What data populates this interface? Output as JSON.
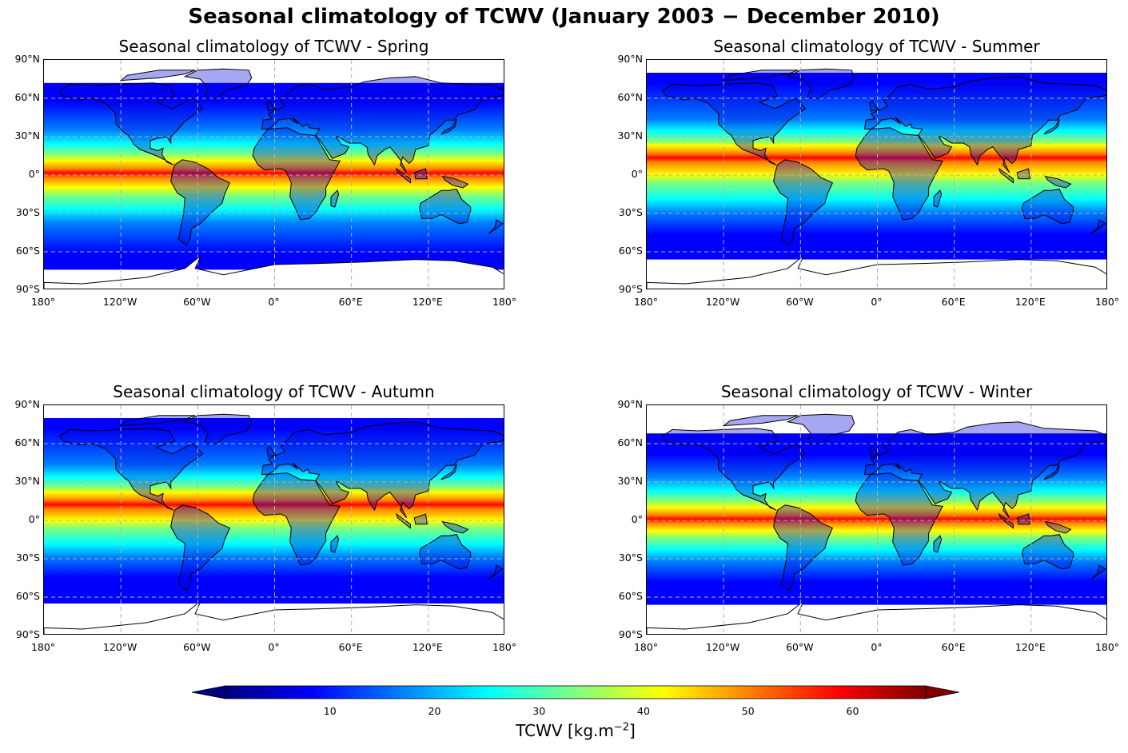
{
  "title": "Seasonal climatology of TCWV (January 2003  −  December 2010)",
  "panels": [
    {
      "season": "Spring",
      "title": "Seasonal climatology of TCWV - Spring",
      "ice_north_lat": 72,
      "ice_south_lat": -74,
      "itcz_lat": 3
    },
    {
      "season": "Summer",
      "title": "Seasonal climatology of TCWV - Summer",
      "ice_north_lat": 80,
      "ice_south_lat": -66,
      "itcz_lat": 8
    },
    {
      "season": "Autumn",
      "title": "Seasonal climatology of TCWV - Autumn",
      "ice_north_lat": 80,
      "ice_south_lat": -65,
      "itcz_lat": 6
    },
    {
      "season": "Winter",
      "title": "Seasonal climatology of TCWV - Winter",
      "ice_north_lat": 68,
      "ice_south_lat": -66,
      "itcz_lat": 0
    }
  ],
  "axes": {
    "lat_ticks": [
      "90°N",
      "60°N",
      "30°N",
      "0°",
      "30°S",
      "60°S",
      "90°S"
    ],
    "lon_ticks": [
      "180°",
      "120°W",
      "60°W",
      "0°",
      "60°E",
      "120°E",
      "180°"
    ],
    "lat_range": [
      -90,
      90
    ],
    "lon_range": [
      -180,
      180
    ],
    "gridlines": true
  },
  "colorbar": {
    "label": "TCWV [kg.m",
    "label_exp": "−2",
    "label_close": "]",
    "ticks": [
      "10",
      "20",
      "30",
      "40",
      "50",
      "60"
    ],
    "tick_values": [
      10,
      20,
      30,
      40,
      50,
      60
    ],
    "range": [
      0,
      67
    ],
    "colormap": "jet",
    "extend": "both"
  },
  "colors": {
    "jet": [
      "#00007f",
      "#0000ff",
      "#007fff",
      "#00ffff",
      "#7fff7f",
      "#ffff00",
      "#ff7f00",
      "#ff0000",
      "#7f0000"
    ],
    "coastline": "#000000",
    "gridline": "#b0b0b0",
    "no_data": "#ffffff"
  }
}
